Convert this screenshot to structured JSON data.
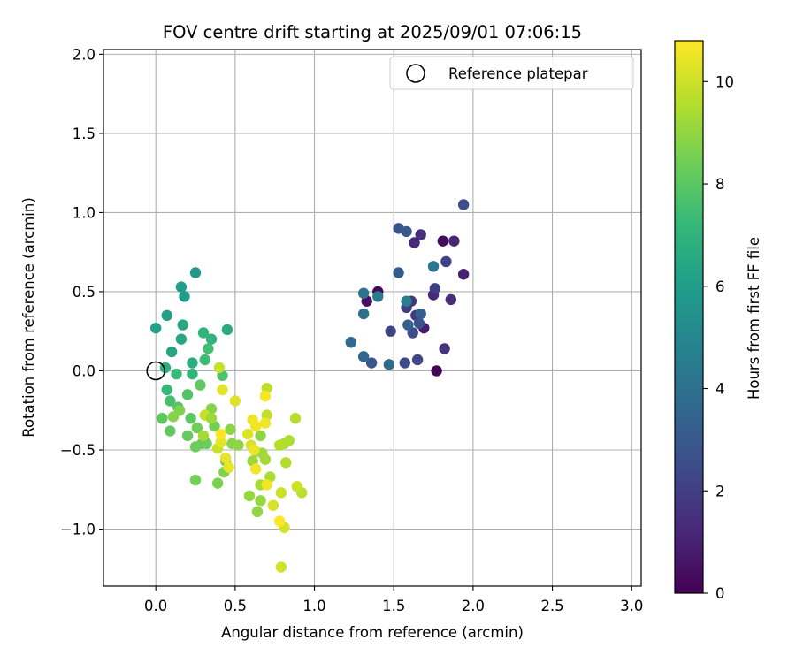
{
  "chart_data": {
    "type": "scatter",
    "title": "FOV centre drift starting at 2025/09/01 07:06:15",
    "xlabel": "Angular distance from reference (arcmin)",
    "ylabel": "Rotation from reference (arcmin)",
    "xlim": [
      -0.33,
      3.06
    ],
    "ylim": [
      -1.36,
      2.03
    ],
    "xticks": [
      0.0,
      0.5,
      1.0,
      1.5,
      2.0,
      2.5,
      3.0
    ],
    "xtick_labels": [
      "0.0",
      "0.5",
      "1.0",
      "1.5",
      "2.0",
      "2.5",
      "3.0"
    ],
    "yticks": [
      -1.0,
      -0.5,
      0.0,
      0.5,
      1.0,
      1.5,
      2.0
    ],
    "ytick_labels": [
      "−1.0",
      "−0.5",
      "0.0",
      "0.5",
      "1.0",
      "1.5",
      "2.0"
    ],
    "grid": true,
    "legend_position": "top-right",
    "legend": [
      "Reference platepar"
    ],
    "reference_point": {
      "x": 0.0,
      "y": 0.0
    },
    "colorbar": {
      "label": "Hours from first FF file",
      "min": 0,
      "max": 10.8,
      "ticks": [
        0,
        2,
        4,
        6,
        8,
        10
      ],
      "tick_labels": [
        "0",
        "2",
        "4",
        "6",
        "8",
        "10"
      ],
      "colormap": "viridis"
    },
    "colormap_stops": [
      "#440154",
      "#482878",
      "#3e4a89",
      "#31688e",
      "#26828e",
      "#1f9e89",
      "#35b779",
      "#6ece58",
      "#b5de2b",
      "#fde725"
    ],
    "points": [
      {
        "x": 1.77,
        "y": 0.0,
        "c": 0.1
      },
      {
        "x": 1.4,
        "y": 0.5,
        "c": 0.2
      },
      {
        "x": 1.81,
        "y": 0.82,
        "c": 0.3
      },
      {
        "x": 1.33,
        "y": 0.44,
        "c": 0.5
      },
      {
        "x": 1.69,
        "y": 0.27,
        "c": 0.9
      },
      {
        "x": 1.94,
        "y": 0.61,
        "c": 1.0
      },
      {
        "x": 1.88,
        "y": 0.82,
        "c": 1.1
      },
      {
        "x": 1.75,
        "y": 0.48,
        "c": 1.2
      },
      {
        "x": 1.63,
        "y": 0.81,
        "c": 1.3
      },
      {
        "x": 1.86,
        "y": 0.45,
        "c": 1.4
      },
      {
        "x": 1.67,
        "y": 0.86,
        "c": 1.5
      },
      {
        "x": 1.82,
        "y": 0.14,
        "c": 1.6
      },
      {
        "x": 1.61,
        "y": 0.44,
        "c": 1.7
      },
      {
        "x": 1.64,
        "y": 0.35,
        "c": 1.8
      },
      {
        "x": 1.58,
        "y": 0.4,
        "c": 1.9
      },
      {
        "x": 1.76,
        "y": 0.52,
        "c": 2.0
      },
      {
        "x": 1.48,
        "y": 0.25,
        "c": 2.1
      },
      {
        "x": 1.83,
        "y": 0.69,
        "c": 2.2
      },
      {
        "x": 1.65,
        "y": 0.07,
        "c": 2.3
      },
      {
        "x": 1.62,
        "y": 0.24,
        "c": 2.4
      },
      {
        "x": 1.57,
        "y": 0.05,
        "c": 2.5
      },
      {
        "x": 1.94,
        "y": 1.05,
        "c": 2.6
      },
      {
        "x": 1.66,
        "y": 0.3,
        "c": 2.7
      },
      {
        "x": 1.53,
        "y": 0.9,
        "c": 2.8
      },
      {
        "x": 1.36,
        "y": 0.05,
        "c": 2.9
      },
      {
        "x": 1.58,
        "y": 0.88,
        "c": 3.0
      },
      {
        "x": 1.53,
        "y": 0.62,
        "c": 3.1
      },
      {
        "x": 1.67,
        "y": 0.36,
        "c": 3.2
      },
      {
        "x": 1.59,
        "y": 0.29,
        "c": 3.4
      },
      {
        "x": 1.31,
        "y": 0.09,
        "c": 3.6
      },
      {
        "x": 1.23,
        "y": 0.18,
        "c": 3.7
      },
      {
        "x": 1.47,
        "y": 0.04,
        "c": 3.8
      },
      {
        "x": 1.31,
        "y": 0.36,
        "c": 3.9
      },
      {
        "x": 1.31,
        "y": 0.49,
        "c": 4.1
      },
      {
        "x": 1.75,
        "y": 0.66,
        "c": 4.3
      },
      {
        "x": 1.4,
        "y": 0.47,
        "c": 4.5
      },
      {
        "x": 1.58,
        "y": 0.44,
        "c": 4.6
      },
      {
        "x": 0.25,
        "y": 0.62,
        "c": 5.8
      },
      {
        "x": 0.18,
        "y": 0.47,
        "c": 5.9
      },
      {
        "x": 0.16,
        "y": 0.53,
        "c": 6.0
      },
      {
        "x": 0.07,
        "y": 0.35,
        "c": 6.1
      },
      {
        "x": 0.0,
        "y": 0.27,
        "c": 6.2
      },
      {
        "x": 0.1,
        "y": 0.12,
        "c": 6.3
      },
      {
        "x": 0.16,
        "y": 0.2,
        "c": 6.4
      },
      {
        "x": 0.17,
        "y": 0.29,
        "c": 6.5
      },
      {
        "x": 0.45,
        "y": 0.26,
        "c": 6.6
      },
      {
        "x": 0.23,
        "y": 0.05,
        "c": 6.7
      },
      {
        "x": 0.06,
        "y": 0.02,
        "c": 6.8
      },
      {
        "x": 0.35,
        "y": 0.2,
        "c": 6.9
      },
      {
        "x": 0.3,
        "y": 0.24,
        "c": 7.0
      },
      {
        "x": 0.23,
        "y": -0.02,
        "c": 7.1
      },
      {
        "x": 0.07,
        "y": -0.12,
        "c": 7.2
      },
      {
        "x": 0.13,
        "y": -0.02,
        "c": 7.3
      },
      {
        "x": 0.31,
        "y": 0.07,
        "c": 7.4
      },
      {
        "x": 0.33,
        "y": 0.14,
        "c": 7.5
      },
      {
        "x": 0.09,
        "y": -0.19,
        "c": 7.6
      },
      {
        "x": 0.42,
        "y": -0.03,
        "c": 7.7
      },
      {
        "x": 0.2,
        "y": -0.15,
        "c": 7.8
      },
      {
        "x": 0.14,
        "y": -0.23,
        "c": 7.9
      },
      {
        "x": 0.22,
        "y": -0.3,
        "c": 8.0
      },
      {
        "x": 0.04,
        "y": -0.3,
        "c": 8.05
      },
      {
        "x": 0.09,
        "y": -0.38,
        "c": 8.1
      },
      {
        "x": 0.28,
        "y": -0.09,
        "c": 8.15
      },
      {
        "x": 0.2,
        "y": -0.41,
        "c": 8.2
      },
      {
        "x": 0.29,
        "y": -0.46,
        "c": 8.25
      },
      {
        "x": 0.32,
        "y": -0.46,
        "c": 8.3
      },
      {
        "x": 0.25,
        "y": -0.48,
        "c": 8.35
      },
      {
        "x": 0.26,
        "y": -0.36,
        "c": 8.4
      },
      {
        "x": 0.37,
        "y": -0.35,
        "c": 8.45
      },
      {
        "x": 0.25,
        "y": -0.69,
        "c": 8.5
      },
      {
        "x": 0.44,
        "y": -0.57,
        "c": 8.55
      },
      {
        "x": 0.39,
        "y": -0.71,
        "c": 8.6
      },
      {
        "x": 0.43,
        "y": -0.64,
        "c": 8.65
      },
      {
        "x": 0.15,
        "y": -0.25,
        "c": 8.7
      },
      {
        "x": 0.35,
        "y": -0.24,
        "c": 8.75
      },
      {
        "x": 0.11,
        "y": -0.29,
        "c": 8.8
      },
      {
        "x": 0.48,
        "y": -0.46,
        "c": 8.85
      },
      {
        "x": 0.47,
        "y": -0.37,
        "c": 8.9
      },
      {
        "x": 0.66,
        "y": -0.41,
        "c": 8.95
      },
      {
        "x": 0.64,
        "y": -0.89,
        "c": 9.0
      },
      {
        "x": 0.66,
        "y": -0.82,
        "c": 9.05
      },
      {
        "x": 0.59,
        "y": -0.79,
        "c": 9.1
      },
      {
        "x": 0.61,
        "y": -0.57,
        "c": 9.15
      },
      {
        "x": 0.63,
        "y": -0.51,
        "c": 9.2
      },
      {
        "x": 0.67,
        "y": -0.52,
        "c": 9.25
      },
      {
        "x": 0.69,
        "y": -0.56,
        "c": 9.3
      },
      {
        "x": 0.66,
        "y": -0.72,
        "c": 9.35
      },
      {
        "x": 0.72,
        "y": -0.67,
        "c": 9.4
      },
      {
        "x": 0.81,
        "y": -0.46,
        "c": 9.45
      },
      {
        "x": 0.84,
        "y": -0.44,
        "c": 9.5
      },
      {
        "x": 0.82,
        "y": -0.58,
        "c": 9.55
      },
      {
        "x": 0.78,
        "y": -0.47,
        "c": 9.6
      },
      {
        "x": 0.88,
        "y": -0.3,
        "c": 9.65
      },
      {
        "x": 0.92,
        "y": -0.77,
        "c": 9.7
      },
      {
        "x": 0.7,
        "y": -0.11,
        "c": 9.75
      },
      {
        "x": 0.7,
        "y": -0.28,
        "c": 9.8
      },
      {
        "x": 0.4,
        "y": 0.02,
        "c": 9.85
      },
      {
        "x": 0.39,
        "y": -0.49,
        "c": 9.9
      },
      {
        "x": 0.79,
        "y": -0.77,
        "c": 9.95
      },
      {
        "x": 0.89,
        "y": -0.73,
        "c": 10.0
      },
      {
        "x": 0.79,
        "y": -1.24,
        "c": 10.05
      },
      {
        "x": 0.81,
        "y": -0.99,
        "c": 10.1
      },
      {
        "x": 0.74,
        "y": -0.85,
        "c": 10.15
      },
      {
        "x": 0.6,
        "y": -0.47,
        "c": 10.2
      },
      {
        "x": 0.58,
        "y": -0.4,
        "c": 10.25
      },
      {
        "x": 0.5,
        "y": -0.19,
        "c": 10.3
      },
      {
        "x": 0.42,
        "y": -0.12,
        "c": 10.35
      },
      {
        "x": 0.41,
        "y": -0.45,
        "c": 10.4
      },
      {
        "x": 0.44,
        "y": -0.55,
        "c": 10.45
      },
      {
        "x": 0.46,
        "y": -0.61,
        "c": 10.5
      },
      {
        "x": 0.61,
        "y": -0.31,
        "c": 10.55
      },
      {
        "x": 0.63,
        "y": -0.35,
        "c": 10.6
      },
      {
        "x": 0.63,
        "y": -0.62,
        "c": 10.6
      },
      {
        "x": 0.7,
        "y": -0.72,
        "c": 10.65
      },
      {
        "x": 0.69,
        "y": -0.16,
        "c": 10.7
      },
      {
        "x": 0.78,
        "y": -0.95,
        "c": 10.75
      },
      {
        "x": 0.41,
        "y": -0.4,
        "c": 10.8
      },
      {
        "x": 0.62,
        "y": -0.5,
        "c": 10.5
      },
      {
        "x": 0.69,
        "y": -0.33,
        "c": 10.6
      },
      {
        "x": 0.31,
        "y": -0.28,
        "c": 9.9
      },
      {
        "x": 0.35,
        "y": -0.3,
        "c": 9.2
      },
      {
        "x": 0.52,
        "y": -0.47,
        "c": 8.9
      },
      {
        "x": 0.3,
        "y": -0.41,
        "c": 9.3
      }
    ]
  }
}
